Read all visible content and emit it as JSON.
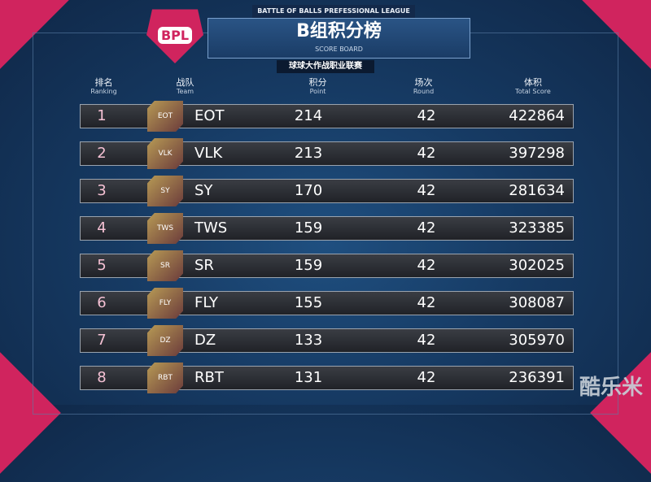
{
  "header": {
    "league": "BATTLE OF BALLS PREFESSIONAL LEAGUE",
    "title": "B组积分榜",
    "subtitle": "SCORE BOARD",
    "tag": "球球大作战职业联赛",
    "logo": "BPL"
  },
  "columns": [
    {
      "cn": "排名",
      "en": "Ranking"
    },
    {
      "cn": "战队",
      "en": "Team"
    },
    {
      "cn": "积分",
      "en": "Point"
    },
    {
      "cn": "场次",
      "en": "Round"
    },
    {
      "cn": "体积",
      "en": "Total Score"
    }
  ],
  "rows": [
    {
      "rank": "1",
      "team": "EOT",
      "point": "214",
      "round": "42",
      "score": "422864"
    },
    {
      "rank": "2",
      "team": "VLK",
      "point": "213",
      "round": "42",
      "score": "397298"
    },
    {
      "rank": "3",
      "team": "SY",
      "point": "170",
      "round": "42",
      "score": "281634"
    },
    {
      "rank": "4",
      "team": "TWS",
      "point": "159",
      "round": "42",
      "score": "323385"
    },
    {
      "rank": "5",
      "team": "SR",
      "point": "159",
      "round": "42",
      "score": "302025"
    },
    {
      "rank": "6",
      "team": "FLY",
      "point": "155",
      "round": "42",
      "score": "308087"
    },
    {
      "rank": "7",
      "team": "DZ",
      "point": "133",
      "round": "42",
      "score": "305970"
    },
    {
      "rank": "8",
      "team": "RBT",
      "point": "131",
      "round": "42",
      "score": "236391"
    }
  ],
  "watermark": "酷乐米",
  "colors": {
    "accent": "#d0245e",
    "background": "#163a63"
  }
}
